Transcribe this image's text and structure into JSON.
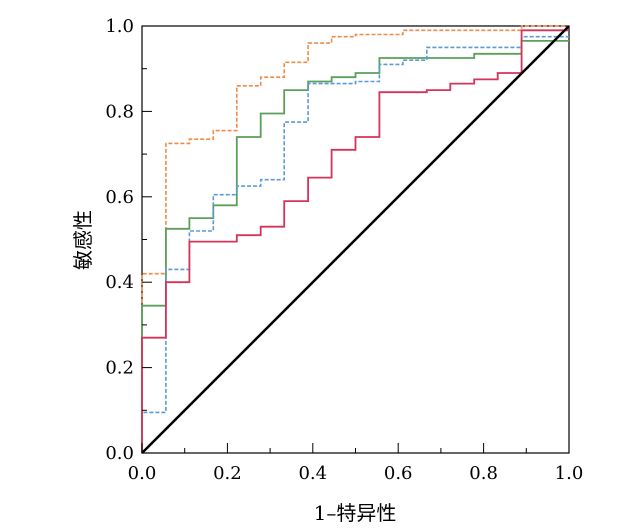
{
  "chart_data": {
    "type": "line",
    "title": "",
    "xlabel": "1–特异性",
    "ylabel": "敏感性",
    "xlim": [
      0,
      1
    ],
    "ylim": [
      0,
      1
    ],
    "grid": false,
    "xticks": [
      "0.0",
      "0.2",
      "0.4",
      "0.6",
      "0.8",
      "1.0"
    ],
    "yticks": [
      "0.0",
      "0.2",
      "0.4",
      "0.6",
      "0.8",
      "1.0"
    ],
    "reference_line": {
      "x": [
        0,
        1
      ],
      "y": [
        0,
        1
      ],
      "color": "#000000"
    },
    "series": [
      {
        "color": "#f08a4b",
        "dashed": true,
        "x": [
          0,
          0,
          0.056,
          0.056,
          0.111,
          0.111,
          0.167,
          0.167,
          0.222,
          0.222,
          0.278,
          0.278,
          0.333,
          0.333,
          0.389,
          0.389,
          0.444,
          0.444,
          0.5,
          0.5,
          0.611,
          0.611,
          0.889,
          0.889,
          1.0
        ],
        "y": [
          0,
          0.42,
          0.42,
          0.725,
          0.725,
          0.735,
          0.735,
          0.755,
          0.755,
          0.86,
          0.86,
          0.88,
          0.88,
          0.915,
          0.915,
          0.96,
          0.96,
          0.975,
          0.975,
          0.98,
          0.98,
          0.99,
          0.99,
          1.0,
          1.0
        ]
      },
      {
        "color": "#5aa05a",
        "dashed": false,
        "x": [
          0,
          0,
          0.056,
          0.056,
          0.111,
          0.111,
          0.167,
          0.167,
          0.222,
          0.222,
          0.278,
          0.278,
          0.333,
          0.333,
          0.389,
          0.389,
          0.444,
          0.444,
          0.5,
          0.5,
          0.556,
          0.556,
          0.778,
          0.778,
          0.889,
          0.889,
          1.0
        ],
        "y": [
          0,
          0.345,
          0.345,
          0.525,
          0.525,
          0.55,
          0.55,
          0.58,
          0.58,
          0.74,
          0.74,
          0.795,
          0.795,
          0.85,
          0.85,
          0.87,
          0.87,
          0.88,
          0.88,
          0.89,
          0.89,
          0.925,
          0.925,
          0.935,
          0.935,
          0.965,
          0.965
        ]
      },
      {
        "color": "#5b9bd5",
        "dashed": true,
        "x": [
          0,
          0,
          0.056,
          0.056,
          0.111,
          0.111,
          0.167,
          0.167,
          0.222,
          0.222,
          0.278,
          0.278,
          0.333,
          0.333,
          0.389,
          0.389,
          0.5,
          0.5,
          0.556,
          0.556,
          0.611,
          0.611,
          0.667,
          0.667,
          0.889,
          0.889,
          1.0
        ],
        "y": [
          0,
          0.095,
          0.095,
          0.43,
          0.43,
          0.52,
          0.52,
          0.605,
          0.605,
          0.625,
          0.625,
          0.64,
          0.64,
          0.775,
          0.775,
          0.865,
          0.865,
          0.87,
          0.87,
          0.91,
          0.91,
          0.92,
          0.92,
          0.95,
          0.95,
          0.975,
          0.975
        ]
      },
      {
        "color": "#d6335a",
        "dashed": false,
        "x": [
          0,
          0,
          0.056,
          0.056,
          0.111,
          0.111,
          0.222,
          0.222,
          0.278,
          0.278,
          0.333,
          0.333,
          0.389,
          0.389,
          0.444,
          0.444,
          0.5,
          0.5,
          0.556,
          0.556,
          0.667,
          0.667,
          0.722,
          0.722,
          0.778,
          0.778,
          0.833,
          0.833,
          0.889,
          0.889,
          1.0
        ],
        "y": [
          0,
          0.27,
          0.27,
          0.4,
          0.4,
          0.495,
          0.495,
          0.51,
          0.51,
          0.53,
          0.53,
          0.59,
          0.59,
          0.645,
          0.645,
          0.71,
          0.71,
          0.74,
          0.74,
          0.845,
          0.845,
          0.85,
          0.85,
          0.865,
          0.865,
          0.875,
          0.875,
          0.89,
          0.89,
          0.99,
          0.99
        ]
      }
    ]
  }
}
